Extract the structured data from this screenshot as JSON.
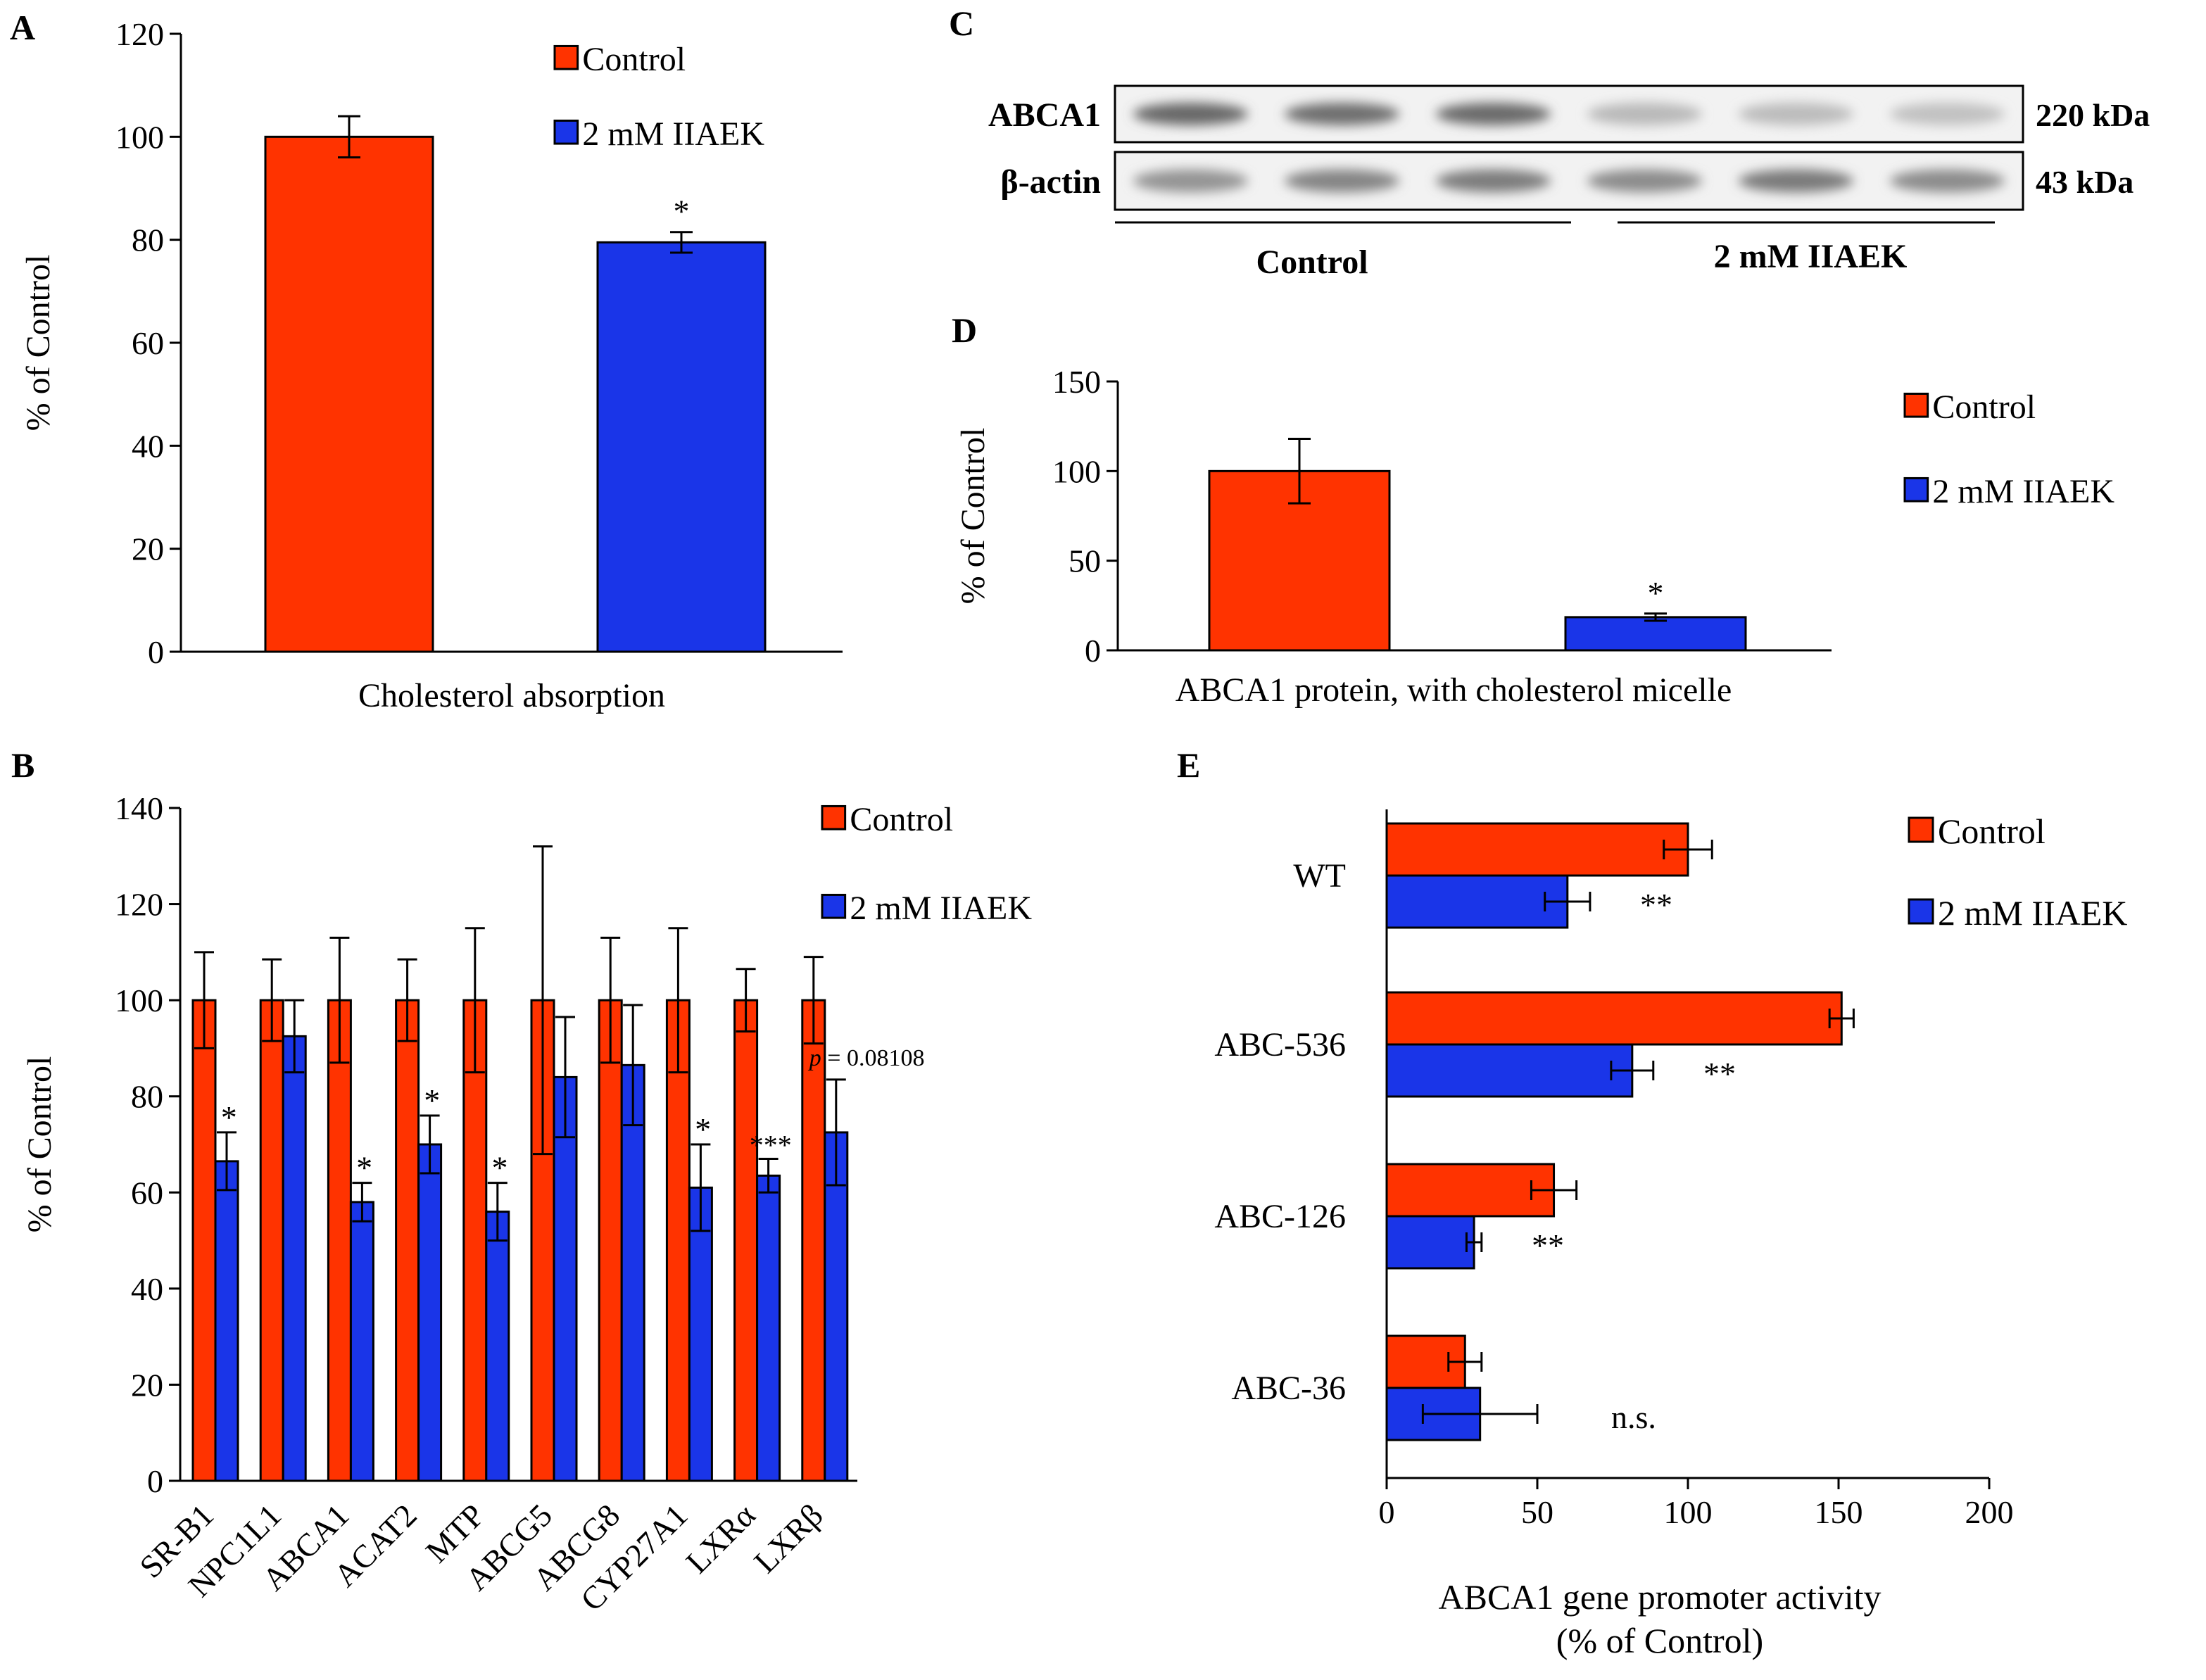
{
  "colors": {
    "control": "#ff3300",
    "treated": "#1a35e8",
    "axis": "#000000"
  },
  "legend": {
    "control": "Control",
    "treated": "2 mM IIAEK"
  },
  "chart_data": [
    {
      "panel": "A",
      "type": "bar",
      "title": "",
      "ylabel": "% of Control",
      "xlabel": "Cholesterol absorption",
      "ylim": [
        0,
        120
      ],
      "yticks": [
        0,
        20,
        40,
        60,
        80,
        100,
        120
      ],
      "categories": [
        "Control",
        "2 mM IIAEK"
      ],
      "values": [
        100,
        79.5
      ],
      "errors": [
        4,
        2
      ],
      "annotations": [
        "",
        "*"
      ]
    },
    {
      "panel": "B",
      "type": "bar",
      "title": "",
      "ylabel": "% of Control",
      "xlabel": "",
      "ylim": [
        0,
        140
      ],
      "yticks": [
        0,
        20,
        40,
        60,
        80,
        100,
        120,
        140
      ],
      "categories": [
        "SR-B1",
        "NPC1L1",
        "ABCA1",
        "ACAT2",
        "MTP",
        "ABCG5",
        "ABCG8",
        "CYP27A1",
        "LXRα",
        "LXRβ"
      ],
      "series": [
        {
          "name": "Control",
          "values": [
            100,
            100,
            100,
            100,
            100,
            100,
            100,
            100,
            100,
            100
          ],
          "errors": [
            10,
            8.5,
            13,
            8.5,
            15,
            32,
            13,
            15,
            6.5,
            9
          ]
        },
        {
          "name": "2 mM IIAEK",
          "values": [
            66.5,
            92.5,
            58,
            70,
            56,
            84,
            86.5,
            61,
            63.5,
            72.5
          ],
          "errors": [
            6,
            7.5,
            4,
            6,
            6,
            12.5,
            12.5,
            9,
            3.5,
            11
          ]
        }
      ],
      "annotations": [
        "*",
        "",
        "*",
        "*",
        "*",
        "",
        "",
        "*",
        "***",
        ""
      ],
      "pvalue_label": "= 0.08108",
      "pvalue_symbol": "p"
    },
    {
      "panel": "C",
      "type": "blot",
      "rows": [
        {
          "name": "ABCA1",
          "size": "220 kDa"
        },
        {
          "name": "β-actin",
          "size": "43 kDa"
        }
      ],
      "groups": [
        "Control",
        "2 mM IIAEK"
      ],
      "abca1_intensity": [
        0.85,
        0.8,
        0.82,
        0.3,
        0.28,
        0.25
      ],
      "actin_intensity": [
        0.55,
        0.65,
        0.7,
        0.6,
        0.72,
        0.6
      ]
    },
    {
      "panel": "D",
      "type": "bar",
      "title": "",
      "ylabel": "% of Control",
      "xlabel": "ABCA1 protein, with cholesterol micelle",
      "ylim": [
        0,
        150
      ],
      "yticks": [
        0,
        50,
        100,
        150
      ],
      "categories": [
        "Control",
        "2 mM IIAEK"
      ],
      "values": [
        100,
        18.5
      ],
      "errors": [
        18,
        2
      ],
      "annotations": [
        "",
        "*"
      ]
    },
    {
      "panel": "E",
      "type": "hbar",
      "title": "",
      "xlabel": "ABCA1 gene promoter activity",
      "xlabel2": "(% of Control)",
      "xlim": [
        0,
        200
      ],
      "xticks": [
        0,
        50,
        100,
        150,
        200
      ],
      "categories": [
        "WT",
        "ABC-536",
        "ABC-126",
        "ABC-36"
      ],
      "series": [
        {
          "name": "Control",
          "values": [
            100,
            151,
            55.5,
            26
          ],
          "errors": [
            8,
            4,
            7.5,
            5.5
          ]
        },
        {
          "name": "2 mM IIAEK",
          "values": [
            60,
            81.5,
            29,
            31
          ],
          "errors": [
            7.5,
            7,
            2.5,
            19
          ]
        }
      ],
      "annotations": [
        "**",
        "**",
        "**",
        "n.s."
      ]
    }
  ]
}
